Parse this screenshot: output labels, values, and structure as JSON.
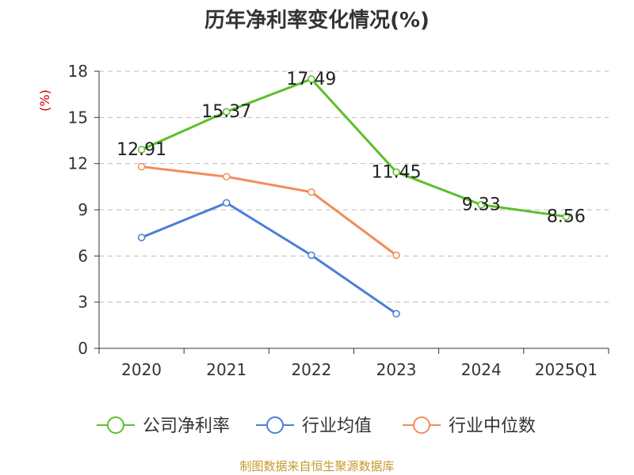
{
  "title": "历年净利率变化情况(%)",
  "source": "制图数据来自恒生聚源数据库",
  "colors": {
    "company": "#5cbf2a",
    "industry_avg": "#4a7fd6",
    "industry_median": "#f28c5a",
    "axis": "#333333",
    "grid": "#bbbbbb",
    "unit_label": "#cc0000"
  },
  "chart_data": {
    "type": "line",
    "title": "历年净利率变化情况(%)",
    "ylabel": "(%)",
    "xlabel": "",
    "categories": [
      "2020",
      "2021",
      "2022",
      "2023",
      "2024",
      "2025Q1"
    ],
    "ylim": [
      0,
      18
    ],
    "yticks": [
      0,
      3,
      6,
      9,
      12,
      15,
      18
    ],
    "grid": true,
    "legend_position": "bottom",
    "series": [
      {
        "name": "公司净利率",
        "color": "#5cbf2a",
        "values": [
          12.91,
          15.37,
          17.49,
          11.45,
          9.33,
          8.56
        ],
        "labels": [
          "12.91",
          "15.37",
          "17.49",
          "11.45",
          "9.33",
          "8.56"
        ]
      },
      {
        "name": "行业均值",
        "color": "#4a7fd6",
        "values": [
          7.2,
          9.45,
          6.05,
          2.25,
          null,
          null
        ]
      },
      {
        "name": "行业中位数",
        "color": "#f28c5a",
        "values": [
          11.8,
          11.15,
          10.15,
          6.05,
          null,
          null
        ]
      }
    ]
  }
}
